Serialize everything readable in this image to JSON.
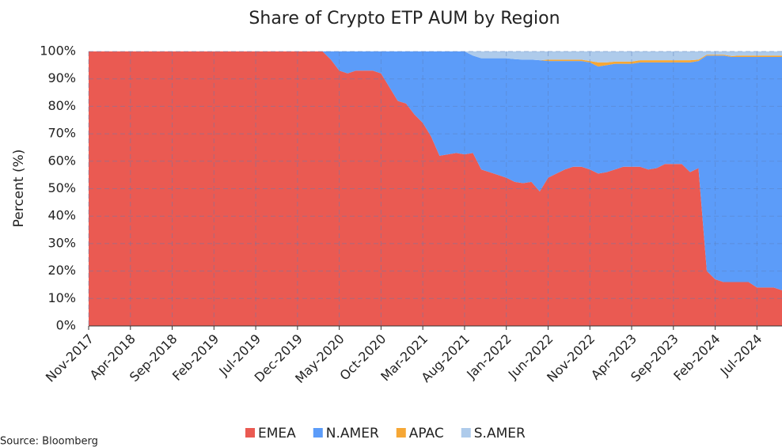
{
  "chart_data": {
    "type": "stacked_area",
    "title": "Share of Crypto ETP AUM by Region",
    "ylabel": "Percent (%)",
    "source": "Source: Bloomberg",
    "categories": [
      "Nov-2017",
      null,
      null,
      null,
      null,
      "Apr-2018",
      null,
      null,
      null,
      null,
      "Sep-2018",
      null,
      null,
      null,
      null,
      "Feb-2019",
      null,
      null,
      null,
      null,
      "Jul-2019",
      null,
      null,
      null,
      null,
      "Dec-2019",
      null,
      null,
      null,
      null,
      "May-2020",
      null,
      null,
      null,
      null,
      "Oct-2020",
      null,
      null,
      null,
      null,
      "Mar-2021",
      null,
      null,
      null,
      null,
      "Aug-2021",
      null,
      null,
      null,
      null,
      "Jan-2022",
      null,
      null,
      null,
      null,
      "Jun-2022",
      null,
      null,
      null,
      null,
      "Nov-2022",
      null,
      null,
      null,
      null,
      "Apr-2023",
      null,
      null,
      null,
      null,
      "Sep-2023",
      null,
      null,
      null,
      null,
      "Feb-2024",
      null,
      null,
      null,
      null,
      "Jul-2024",
      null,
      null,
      null
    ],
    "series": [
      {
        "name": "EMEA",
        "color": "#ea5a52",
        "values": [
          100,
          100,
          100,
          100,
          100,
          100,
          100,
          100,
          100,
          100,
          100,
          100,
          100,
          100,
          100,
          100,
          100,
          100,
          100,
          100,
          100,
          100,
          100,
          100,
          100,
          100,
          100,
          100,
          100,
          97,
          93,
          92,
          93,
          93,
          93,
          92,
          87,
          82,
          81,
          77,
          74,
          69,
          62,
          62.5,
          63,
          62.5,
          63,
          57,
          56,
          55,
          54,
          52.5,
          52,
          52.5,
          49,
          54,
          55.5,
          57,
          58,
          58,
          57,
          55.5,
          56,
          57,
          58,
          58,
          58,
          57,
          57.5,
          59,
          59,
          59,
          56,
          57.5,
          20,
          17,
          16,
          16,
          16,
          16,
          14,
          14,
          14,
          13
        ]
      },
      {
        "name": "N.AMER",
        "color": "#5c9cf9",
        "values": [
          0,
          0,
          0,
          0,
          0,
          0,
          0,
          0,
          0,
          0,
          0,
          0,
          0,
          0,
          0,
          0,
          0,
          0,
          0,
          0,
          0,
          0,
          0,
          0,
          0,
          0,
          0,
          0,
          0,
          3,
          7,
          8,
          7,
          7,
          7,
          8,
          13,
          18,
          19,
          23,
          26,
          31,
          38,
          37.5,
          37,
          37.5,
          35.5,
          40.5,
          41.5,
          42.5,
          43.5,
          44.7,
          45,
          44.5,
          47.8,
          42.5,
          41,
          39.5,
          38.5,
          38.5,
          39,
          39,
          39,
          38.5,
          37.5,
          37.5,
          38,
          39,
          38.5,
          37,
          37,
          37,
          40,
          39,
          78.5,
          81.5,
          82.5,
          82,
          82,
          82,
          84,
          84,
          84,
          85
        ]
      },
      {
        "name": "APAC",
        "color": "#f6a735",
        "values": [
          0,
          0,
          0,
          0,
          0,
          0,
          0,
          0,
          0,
          0,
          0,
          0,
          0,
          0,
          0,
          0,
          0,
          0,
          0,
          0,
          0,
          0,
          0,
          0,
          0,
          0,
          0,
          0,
          0,
          0,
          0,
          0,
          0,
          0,
          0,
          0,
          0,
          0,
          0,
          0,
          0,
          0,
          0,
          0,
          0,
          0,
          0,
          0,
          0,
          0,
          0,
          0,
          0,
          0,
          0,
          0.5,
          0.5,
          0.5,
          0.5,
          0.5,
          0.5,
          1.5,
          1,
          0.8,
          0.8,
          0.8,
          0.8,
          0.8,
          0.8,
          0.8,
          0.8,
          0.8,
          0.8,
          0.5,
          0.3,
          0.3,
          0.3,
          0.3,
          0.5,
          0.5,
          0.5,
          0.5,
          0.5,
          0.5
        ]
      },
      {
        "name": "S.AMER",
        "color": "#aecbeb",
        "values": [
          0,
          0,
          0,
          0,
          0,
          0,
          0,
          0,
          0,
          0,
          0,
          0,
          0,
          0,
          0,
          0,
          0,
          0,
          0,
          0,
          0,
          0,
          0,
          0,
          0,
          0,
          0,
          0,
          0,
          0,
          0,
          0,
          0,
          0,
          0,
          0,
          0,
          0,
          0,
          0,
          0,
          0,
          0,
          0,
          0,
          0,
          1.5,
          2.5,
          2.5,
          2.5,
          2.5,
          2.8,
          3,
          3,
          3.2,
          3,
          3,
          3,
          3,
          3,
          3.5,
          4,
          4,
          3.7,
          3.7,
          3.7,
          3.2,
          3.2,
          3.2,
          3.2,
          3.2,
          3.2,
          3.2,
          3,
          1.2,
          1.2,
          1.2,
          1.7,
          1.5,
          1.5,
          1.5,
          1.5,
          1.5,
          1.5
        ]
      }
    ],
    "ylim": [
      0,
      100
    ],
    "yticks": [
      {
        "value": 0,
        "label": "0%"
      },
      {
        "value": 10,
        "label": "10%"
      },
      {
        "value": 20,
        "label": "20%"
      },
      {
        "value": 30,
        "label": "30%"
      },
      {
        "value": 40,
        "label": "40%"
      },
      {
        "value": 50,
        "label": "50%"
      },
      {
        "value": 60,
        "label": "60%"
      },
      {
        "value": 70,
        "label": "70%"
      },
      {
        "value": 80,
        "label": "80%"
      },
      {
        "value": 90,
        "label": "90%"
      },
      {
        "value": 100,
        "label": "100%"
      }
    ],
    "grid": true,
    "legend": "bottom"
  }
}
